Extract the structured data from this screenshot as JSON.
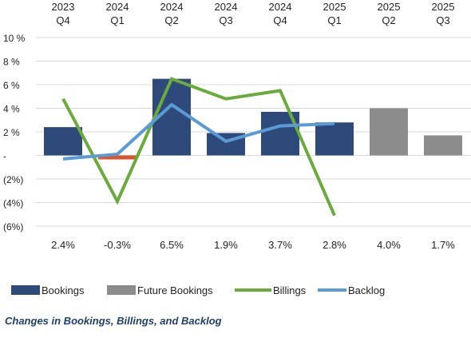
{
  "chart_data": {
    "type": "bar",
    "categories": [
      [
        "2023",
        "Q4"
      ],
      [
        "2024",
        "Q1"
      ],
      [
        "2024",
        "Q2"
      ],
      [
        "2024",
        "Q3"
      ],
      [
        "2024",
        "Q4"
      ],
      [
        "2025",
        "Q1"
      ],
      [
        "2025",
        "Q2"
      ],
      [
        "2025",
        "Q3"
      ]
    ],
    "ylim": [
      -6,
      10
    ],
    "yticks": [
      {
        "value": 10,
        "label": "10 %"
      },
      {
        "value": 8,
        "label": "8 %"
      },
      {
        "value": 6,
        "label": "6 %"
      },
      {
        "value": 4,
        "label": "4 %"
      },
      {
        "value": 2,
        "label": "2 %"
      },
      {
        "value": 0,
        "label": "-"
      },
      {
        "value": -2,
        "label": "(2%)"
      },
      {
        "value": -4,
        "label": "(4%)"
      },
      {
        "value": -6,
        "label": "(6%)"
      }
    ],
    "grid": true,
    "legend_position": "bottom",
    "bars": [
      {
        "value": 2.4,
        "label": "2.4%",
        "kind": "bookings"
      },
      {
        "value": -0.3,
        "label": "-0.3%",
        "kind": "bookings_negative"
      },
      {
        "value": 6.5,
        "label": "6.5%",
        "kind": "bookings"
      },
      {
        "value": 1.9,
        "label": "1.9%",
        "kind": "bookings"
      },
      {
        "value": 3.7,
        "label": "3.7%",
        "kind": "bookings"
      },
      {
        "value": 2.8,
        "label": "2.8%",
        "kind": "bookings"
      },
      {
        "value": 4.0,
        "label": "4.0%",
        "kind": "future"
      },
      {
        "value": 1.7,
        "label": "1.7%",
        "kind": "future"
      }
    ],
    "lines": [
      {
        "name": "Billings",
        "key": "billings",
        "values": [
          4.8,
          -3.9,
          6.5,
          4.8,
          5.5,
          -5.1
        ]
      },
      {
        "name": "Backlog",
        "key": "backlog",
        "values": [
          -0.3,
          0.1,
          4.3,
          1.2,
          2.5,
          2.7
        ]
      }
    ],
    "legend": [
      {
        "name": "Bookings",
        "kind": "box",
        "color_key": "bookings"
      },
      {
        "name": "Future Bookings",
        "kind": "box",
        "color_key": "future"
      },
      {
        "name": "Billings",
        "kind": "line",
        "color_key": "billings"
      },
      {
        "name": "Backlog",
        "kind": "line",
        "color_key": "backlog"
      }
    ],
    "colors": {
      "bookings": "#2e4a7a",
      "bookings_negative": "#d9552d",
      "future": "#8c8c8c",
      "billings": "#6aab3c",
      "backlog": "#5b9bd5",
      "grid": "#d9d9d9"
    }
  },
  "caption": "Changes in Bookings, Billings, and Backlog"
}
